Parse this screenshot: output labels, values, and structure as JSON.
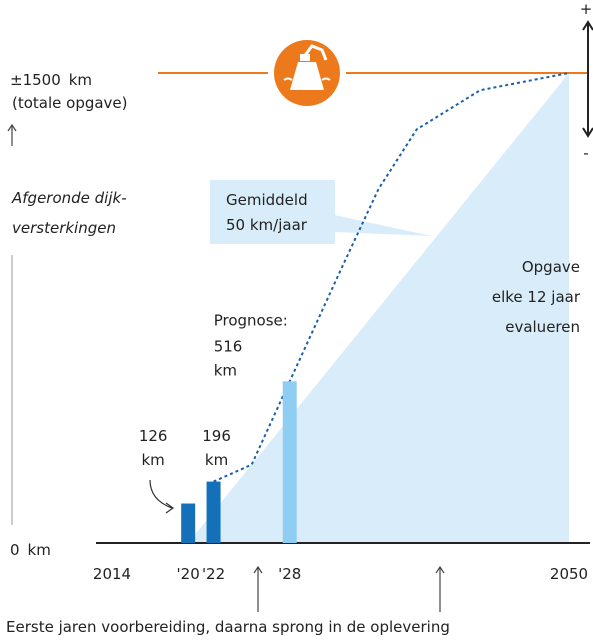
{
  "chart_data": {
    "type": "bar",
    "y_axis_label": [
      "Afgeronde dijk-",
      "versterkingen"
    ],
    "y_unit": "km",
    "top_note": "(totale opgave)",
    "x": [
      2020,
      2022,
      2028
    ],
    "values": [
      126,
      196,
      516
    ],
    "value_labels": [
      "126 km",
      "196 km",
      "516 km"
    ],
    "colors": [
      "#1470b9",
      "#1470b9",
      "#8fcdf2"
    ],
    "forecast_label": "Prognose:",
    "xlim": [
      2014,
      2050
    ],
    "xticks": [
      {
        "value": 2014,
        "label": "2014"
      },
      {
        "value": 2020,
        "label": "'20"
      },
      {
        "value": 2022,
        "label": "'22"
      },
      {
        "value": 2028,
        "label": "'28"
      },
      {
        "value": 2050,
        "label": "2050"
      }
    ],
    "ylim": [
      0,
      1500
    ],
    "yticks": [
      {
        "value": 0,
        "label": "0"
      },
      {
        "value": 1500,
        "label": "±1500"
      }
    ],
    "average": {
      "label": [
        "Gemiddeld",
        "50 km/jaar"
      ],
      "x": [
        2020,
        2050
      ],
      "values": [
        0,
        1500
      ],
      "color": "#d8edf9"
    },
    "expected_curve": {
      "x": [
        2022,
        2025,
        2028,
        2032,
        2035,
        2038,
        2043,
        2050
      ],
      "values": [
        196,
        250,
        516,
        870,
        1130,
        1320,
        1445,
        1500
      ],
      "color": "#1a5fa8"
    },
    "target_color": "#ec7a1c",
    "evaluation_note": [
      "Opgave",
      "elke 12 jaar",
      "evalueren"
    ],
    "range_marks": [
      "+",
      "-"
    ],
    "footer": "Eerste jaren voorbereiding, daarna sprong in de oplevering"
  }
}
